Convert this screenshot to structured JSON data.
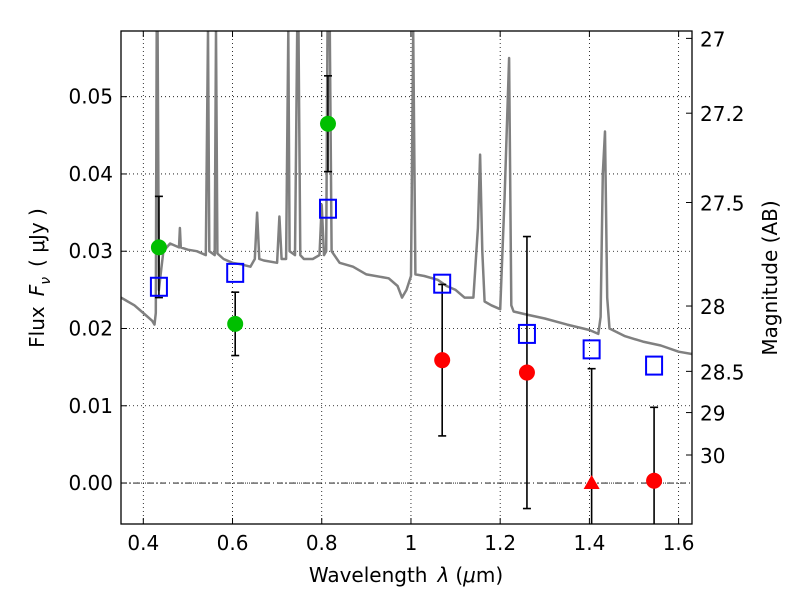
{
  "chart_data": {
    "type": "scatter",
    "xlabel_prefix": "Wavelength",
    "xlabel_lambda": "λ",
    "xlabel_unit_open": "(",
    "xlabel_mu": "μ",
    "xlabel_unit_rest": "m)",
    "ylabel_prefix": "Flux",
    "ylabel_F": "F",
    "ylabel_nu": "ν",
    "ylabel_unit": "( μJy )",
    "y2label": "Magnitude (AB)",
    "xlim": [
      0.35,
      1.63
    ],
    "ylim": [
      -0.0053,
      0.0585
    ],
    "x_ticks": [
      0.4,
      0.6,
      0.8,
      1.0,
      1.2,
      1.4,
      1.6
    ],
    "x_tick_labels": [
      "0.4",
      "0.6",
      "0.8",
      "1",
      "1.2",
      "1.4",
      "1.6"
    ],
    "y_ticks": [
      0.0,
      0.01,
      0.02,
      0.03,
      0.04,
      0.05
    ],
    "y_tick_labels": [
      "0.00",
      "0.01",
      "0.02",
      "0.03",
      "0.04",
      "0.05"
    ],
    "mag_ticks": [
      27,
      27.2,
      27.5,
      28,
      28.5,
      29,
      30
    ],
    "mag_tick_labels": [
      "27",
      "27.2",
      "27.5",
      "28",
      "28.5",
      "29",
      "30"
    ],
    "grid": true,
    "colors": {
      "model": "#808080",
      "green": "#00bf00",
      "red": "#ff0000",
      "blue": "#0000ff",
      "errorbar": "#000000"
    },
    "series": [
      {
        "style": "green-circle",
        "points": [
          {
            "x": 0.435,
            "y": 0.0305,
            "lo": 0.024,
            "hi": 0.0371
          },
          {
            "x": 0.606,
            "y": 0.0206,
            "lo": 0.0165,
            "hi": 0.0247
          },
          {
            "x": 0.814,
            "y": 0.0465,
            "lo": 0.0403,
            "hi": 0.0527
          }
        ]
      },
      {
        "style": "red-circle",
        "points": [
          {
            "x": 1.07,
            "y": 0.0159,
            "lo": 0.0061,
            "hi": 0.0257
          },
          {
            "x": 1.26,
            "y": 0.0143,
            "lo": -0.0033,
            "hi": 0.0319
          },
          {
            "x": 1.545,
            "y": 0.0003,
            "lo": -0.0053,
            "hi": 0.0098
          }
        ]
      },
      {
        "style": "red-triangle",
        "points": [
          {
            "x": 1.405,
            "y": 0.0,
            "lo": -0.0053,
            "hi": 0.0148
          }
        ]
      },
      {
        "style": "blue-square",
        "points": [
          {
            "x": 0.435,
            "y": 0.0254
          },
          {
            "x": 0.606,
            "y": 0.0272
          },
          {
            "x": 0.814,
            "y": 0.0355
          },
          {
            "x": 1.07,
            "y": 0.0258
          },
          {
            "x": 1.26,
            "y": 0.0193
          },
          {
            "x": 1.405,
            "y": 0.0173
          },
          {
            "x": 1.545,
            "y": 0.0152
          }
        ]
      }
    ],
    "model_spectrum": [
      [
        0.35,
        0.024
      ],
      [
        0.38,
        0.023
      ],
      [
        0.4,
        0.022
      ],
      [
        0.42,
        0.021
      ],
      [
        0.425,
        0.0205
      ],
      [
        0.428,
        0.022
      ],
      [
        0.43,
        0.0585
      ],
      [
        0.432,
        0.0585
      ],
      [
        0.435,
        0.025
      ],
      [
        0.44,
        0.0275
      ],
      [
        0.445,
        0.03
      ],
      [
        0.46,
        0.031
      ],
      [
        0.48,
        0.0305
      ],
      [
        0.482,
        0.033
      ],
      [
        0.484,
        0.0305
      ],
      [
        0.5,
        0.0302
      ],
      [
        0.52,
        0.03
      ],
      [
        0.54,
        0.0295
      ],
      [
        0.545,
        0.0585
      ],
      [
        0.548,
        0.03
      ],
      [
        0.56,
        0.0295
      ],
      [
        0.563,
        0.0585
      ],
      [
        0.566,
        0.0297
      ],
      [
        0.58,
        0.029
      ],
      [
        0.6,
        0.0285
      ],
      [
        0.62,
        0.0283
      ],
      [
        0.64,
        0.028
      ],
      [
        0.65,
        0.029
      ],
      [
        0.655,
        0.035
      ],
      [
        0.66,
        0.029
      ],
      [
        0.67,
        0.0288
      ],
      [
        0.7,
        0.0285
      ],
      [
        0.705,
        0.0345
      ],
      [
        0.71,
        0.029
      ],
      [
        0.72,
        0.029
      ],
      [
        0.725,
        0.0585
      ],
      [
        0.728,
        0.03
      ],
      [
        0.74,
        0.0295
      ],
      [
        0.745,
        0.0585
      ],
      [
        0.748,
        0.0585
      ],
      [
        0.752,
        0.0295
      ],
      [
        0.76,
        0.029
      ],
      [
        0.78,
        0.029
      ],
      [
        0.795,
        0.0295
      ],
      [
        0.8,
        0.036
      ],
      [
        0.805,
        0.0295
      ],
      [
        0.81,
        0.03
      ],
      [
        0.813,
        0.0585
      ],
      [
        0.818,
        0.0585
      ],
      [
        0.822,
        0.03
      ],
      [
        0.84,
        0.0285
      ],
      [
        0.87,
        0.028
      ],
      [
        0.9,
        0.027
      ],
      [
        0.95,
        0.0265
      ],
      [
        0.97,
        0.0255
      ],
      [
        0.98,
        0.024
      ],
      [
        0.99,
        0.025
      ],
      [
        1.0,
        0.0268
      ],
      [
        1.005,
        0.0585
      ],
      [
        1.01,
        0.027
      ],
      [
        1.03,
        0.0268
      ],
      [
        1.06,
        0.0263
      ],
      [
        1.08,
        0.0255
      ],
      [
        1.1,
        0.025
      ],
      [
        1.12,
        0.024
      ],
      [
        1.14,
        0.024
      ],
      [
        1.15,
        0.033
      ],
      [
        1.155,
        0.0425
      ],
      [
        1.16,
        0.03
      ],
      [
        1.165,
        0.0235
      ],
      [
        1.18,
        0.023
      ],
      [
        1.2,
        0.0225
      ],
      [
        1.21,
        0.037
      ],
      [
        1.22,
        0.055
      ],
      [
        1.225,
        0.023
      ],
      [
        1.23,
        0.0222
      ],
      [
        1.26,
        0.0218
      ],
      [
        1.3,
        0.0213
      ],
      [
        1.35,
        0.0205
      ],
      [
        1.4,
        0.0198
      ],
      [
        1.42,
        0.0193
      ],
      [
        1.425,
        0.0215
      ],
      [
        1.43,
        0.04
      ],
      [
        1.435,
        0.0455
      ],
      [
        1.44,
        0.024
      ],
      [
        1.445,
        0.02
      ],
      [
        1.48,
        0.019
      ],
      [
        1.52,
        0.0183
      ],
      [
        1.56,
        0.0178
      ],
      [
        1.6,
        0.017
      ],
      [
        1.63,
        0.0167
      ]
    ]
  }
}
